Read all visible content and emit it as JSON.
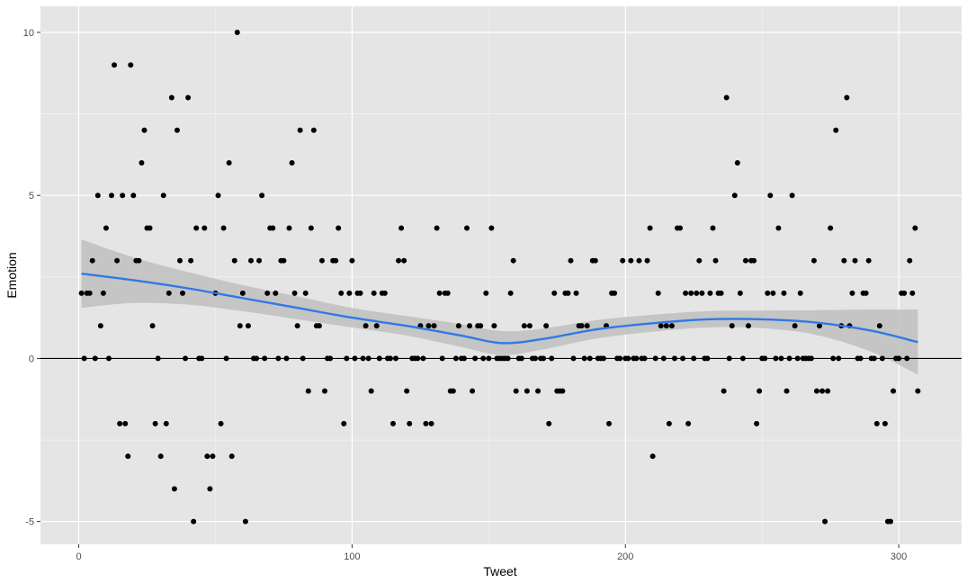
{
  "chart_data": {
    "type": "scatter",
    "title": "",
    "xlabel": "Tweet",
    "ylabel": "Emotion",
    "xlim": [
      -14,
      323
    ],
    "ylim": [
      -5.7,
      10.8
    ],
    "x_ticks": [
      0,
      100,
      200,
      300
    ],
    "y_ticks": [
      -5,
      0,
      5,
      10
    ],
    "x_tick_labels": [
      "0",
      "100",
      "200",
      "300"
    ],
    "y_tick_labels": [
      "-5",
      "0",
      "5",
      "10"
    ],
    "grid": true,
    "reference_line_y": 0,
    "points": [
      [
        1,
        2
      ],
      [
        2,
        0
      ],
      [
        3,
        2
      ],
      [
        4,
        2
      ],
      [
        5,
        3
      ],
      [
        6,
        0
      ],
      [
        7,
        5
      ],
      [
        8,
        1
      ],
      [
        9,
        2
      ],
      [
        10,
        4
      ],
      [
        11,
        0
      ],
      [
        12,
        5
      ],
      [
        13,
        9
      ],
      [
        14,
        3
      ],
      [
        15,
        -2
      ],
      [
        16,
        5
      ],
      [
        17,
        -2
      ],
      [
        18,
        -3
      ],
      [
        19,
        9
      ],
      [
        20,
        5
      ],
      [
        21,
        3
      ],
      [
        22,
        3
      ],
      [
        23,
        6
      ],
      [
        24,
        7
      ],
      [
        25,
        4
      ],
      [
        26,
        4
      ],
      [
        27,
        1
      ],
      [
        28,
        -2
      ],
      [
        29,
        0
      ],
      [
        30,
        -3
      ],
      [
        31,
        5
      ],
      [
        32,
        -2
      ],
      [
        33,
        2
      ],
      [
        34,
        8
      ],
      [
        35,
        -4
      ],
      [
        36,
        7
      ],
      [
        37,
        3
      ],
      [
        38,
        2
      ],
      [
        39,
        0
      ],
      [
        40,
        8
      ],
      [
        41,
        3
      ],
      [
        42,
        -5
      ],
      [
        43,
        4
      ],
      [
        44,
        0
      ],
      [
        45,
        0
      ],
      [
        46,
        4
      ],
      [
        47,
        -3
      ],
      [
        48,
        -4
      ],
      [
        49,
        -3
      ],
      [
        50,
        2
      ],
      [
        51,
        5
      ],
      [
        52,
        -2
      ],
      [
        53,
        4
      ],
      [
        54,
        0
      ],
      [
        55,
        6
      ],
      [
        56,
        -3
      ],
      [
        57,
        3
      ],
      [
        58,
        10
      ],
      [
        59,
        1
      ],
      [
        60,
        2
      ],
      [
        61,
        -5
      ],
      [
        62,
        1
      ],
      [
        63,
        3
      ],
      [
        64,
        0
      ],
      [
        65,
        0
      ],
      [
        66,
        3
      ],
      [
        67,
        5
      ],
      [
        68,
        0
      ],
      [
        69,
        2
      ],
      [
        70,
        4
      ],
      [
        71,
        4
      ],
      [
        72,
        2
      ],
      [
        73,
        0
      ],
      [
        74,
        3
      ],
      [
        75,
        3
      ],
      [
        76,
        0
      ],
      [
        77,
        4
      ],
      [
        78,
        6
      ],
      [
        79,
        2
      ],
      [
        80,
        1
      ],
      [
        81,
        7
      ],
      [
        82,
        0
      ],
      [
        83,
        2
      ],
      [
        84,
        -1
      ],
      [
        85,
        4
      ],
      [
        86,
        7
      ],
      [
        87,
        1
      ],
      [
        88,
        1
      ],
      [
        89,
        3
      ],
      [
        90,
        -1
      ],
      [
        91,
        0
      ],
      [
        92,
        0
      ],
      [
        93,
        3
      ],
      [
        94,
        3
      ],
      [
        95,
        4
      ],
      [
        96,
        2
      ],
      [
        97,
        -2
      ],
      [
        98,
        0
      ],
      [
        99,
        2
      ],
      [
        100,
        3
      ],
      [
        101,
        0
      ],
      [
        102,
        2
      ],
      [
        103,
        2
      ],
      [
        104,
        0
      ],
      [
        105,
        1
      ],
      [
        106,
        0
      ],
      [
        107,
        -1
      ],
      [
        108,
        2
      ],
      [
        109,
        1
      ],
      [
        110,
        0
      ],
      [
        111,
        2
      ],
      [
        112,
        2
      ],
      [
        113,
        0
      ],
      [
        114,
        0
      ],
      [
        115,
        -2
      ],
      [
        116,
        0
      ],
      [
        117,
        3
      ],
      [
        118,
        4
      ],
      [
        119,
        3
      ],
      [
        120,
        -1
      ],
      [
        121,
        -2
      ],
      [
        122,
        0
      ],
      [
        123,
        0
      ],
      [
        124,
        0
      ],
      [
        125,
        1
      ],
      [
        126,
        0
      ],
      [
        127,
        -2
      ],
      [
        128,
        1
      ],
      [
        129,
        -2
      ],
      [
        130,
        1
      ],
      [
        131,
        4
      ],
      [
        132,
        2
      ],
      [
        133,
        0
      ],
      [
        134,
        2
      ],
      [
        135,
        2
      ],
      [
        136,
        -1
      ],
      [
        137,
        -1
      ],
      [
        138,
        0
      ],
      [
        139,
        1
      ],
      [
        140,
        0
      ],
      [
        141,
        0
      ],
      [
        142,
        4
      ],
      [
        143,
        1
      ],
      [
        144,
        -1
      ],
      [
        145,
        0
      ],
      [
        146,
        1
      ],
      [
        147,
        1
      ],
      [
        148,
        0
      ],
      [
        149,
        2
      ],
      [
        150,
        0
      ],
      [
        151,
        4
      ],
      [
        152,
        1
      ],
      [
        153,
        0
      ],
      [
        154,
        0
      ],
      [
        155,
        0
      ],
      [
        156,
        0
      ],
      [
        157,
        0
      ],
      [
        158,
        2
      ],
      [
        159,
        3
      ],
      [
        160,
        -1
      ],
      [
        161,
        0
      ],
      [
        162,
        0
      ],
      [
        163,
        1
      ],
      [
        164,
        -1
      ],
      [
        165,
        1
      ],
      [
        166,
        0
      ],
      [
        167,
        0
      ],
      [
        168,
        -1
      ],
      [
        169,
        0
      ],
      [
        170,
        0
      ],
      [
        171,
        1
      ],
      [
        172,
        -2
      ],
      [
        173,
        0
      ],
      [
        174,
        2
      ],
      [
        175,
        -1
      ],
      [
        176,
        -1
      ],
      [
        177,
        -1
      ],
      [
        178,
        2
      ],
      [
        179,
        2
      ],
      [
        180,
        3
      ],
      [
        181,
        0
      ],
      [
        182,
        2
      ],
      [
        183,
        1
      ],
      [
        184,
        1
      ],
      [
        185,
        0
      ],
      [
        186,
        1
      ],
      [
        187,
        0
      ],
      [
        188,
        3
      ],
      [
        189,
        3
      ],
      [
        190,
        0
      ],
      [
        191,
        0
      ],
      [
        192,
        0
      ],
      [
        193,
        1
      ],
      [
        194,
        -2
      ],
      [
        195,
        2
      ],
      [
        196,
        2
      ],
      [
        197,
        0
      ],
      [
        198,
        0
      ],
      [
        199,
        3
      ],
      [
        200,
        0
      ],
      [
        201,
        0
      ],
      [
        202,
        3
      ],
      [
        203,
        0
      ],
      [
        204,
        0
      ],
      [
        205,
        3
      ],
      [
        206,
        0
      ],
      [
        207,
        0
      ],
      [
        208,
        3
      ],
      [
        209,
        4
      ],
      [
        210,
        -3
      ],
      [
        211,
        0
      ],
      [
        212,
        2
      ],
      [
        213,
        1
      ],
      [
        214,
        0
      ],
      [
        215,
        1
      ],
      [
        216,
        -2
      ],
      [
        217,
        1
      ],
      [
        218,
        0
      ],
      [
        219,
        4
      ],
      [
        220,
        4
      ],
      [
        221,
        0
      ],
      [
        222,
        2
      ],
      [
        223,
        -2
      ],
      [
        224,
        2
      ],
      [
        225,
        0
      ],
      [
        226,
        2
      ],
      [
        227,
        3
      ],
      [
        228,
        2
      ],
      [
        229,
        0
      ],
      [
        230,
        0
      ],
      [
        231,
        2
      ],
      [
        232,
        4
      ],
      [
        233,
        3
      ],
      [
        234,
        2
      ],
      [
        235,
        2
      ],
      [
        236,
        -1
      ],
      [
        237,
        8
      ],
      [
        238,
        0
      ],
      [
        239,
        1
      ],
      [
        240,
        5
      ],
      [
        241,
        6
      ],
      [
        242,
        2
      ],
      [
        243,
        0
      ],
      [
        244,
        3
      ],
      [
        245,
        1
      ],
      [
        246,
        3
      ],
      [
        247,
        3
      ],
      [
        248,
        -2
      ],
      [
        249,
        -1
      ],
      [
        250,
        0
      ],
      [
        251,
        0
      ],
      [
        252,
        2
      ],
      [
        253,
        5
      ],
      [
        254,
        2
      ],
      [
        255,
        0
      ],
      [
        256,
        4
      ],
      [
        257,
        0
      ],
      [
        258,
        2
      ],
      [
        259,
        -1
      ],
      [
        260,
        0
      ],
      [
        261,
        5
      ],
      [
        262,
        1
      ],
      [
        263,
        0
      ],
      [
        264,
        2
      ],
      [
        265,
        0
      ],
      [
        266,
        0
      ],
      [
        267,
        0
      ],
      [
        268,
        0
      ],
      [
        269,
        3
      ],
      [
        270,
        -1
      ],
      [
        271,
        1
      ],
      [
        272,
        -1
      ],
      [
        273,
        -5
      ],
      [
        274,
        -1
      ],
      [
        275,
        4
      ],
      [
        276,
        0
      ],
      [
        277,
        7
      ],
      [
        278,
        0
      ],
      [
        279,
        1
      ],
      [
        280,
        3
      ],
      [
        281,
        8
      ],
      [
        282,
        1
      ],
      [
        283,
        2
      ],
      [
        284,
        3
      ],
      [
        285,
        0
      ],
      [
        286,
        0
      ],
      [
        287,
        2
      ],
      [
        288,
        2
      ],
      [
        289,
        3
      ],
      [
        290,
        0
      ],
      [
        291,
        0
      ],
      [
        292,
        -2
      ],
      [
        293,
        1
      ],
      [
        294,
        0
      ],
      [
        295,
        -2
      ],
      [
        296,
        -5
      ],
      [
        297,
        -5
      ],
      [
        298,
        -1
      ],
      [
        299,
        0
      ],
      [
        300,
        0
      ],
      [
        301,
        2
      ],
      [
        302,
        2
      ],
      [
        303,
        0
      ],
      [
        304,
        3
      ],
      [
        305,
        2
      ],
      [
        306,
        4
      ],
      [
        307,
        -1
      ]
    ],
    "smooth": {
      "x": [
        1,
        20,
        40,
        60,
        80,
        100,
        120,
        140,
        155,
        170,
        190,
        210,
        230,
        250,
        270,
        290,
        307
      ],
      "y": [
        2.6,
        2.4,
        2.15,
        1.85,
        1.55,
        1.25,
        1.0,
        0.7,
        0.47,
        0.6,
        0.9,
        1.08,
        1.2,
        1.2,
        1.1,
        0.85,
        0.5
      ],
      "lower": [
        1.55,
        1.7,
        1.65,
        1.45,
        1.2,
        0.95,
        0.7,
        0.35,
        0.1,
        0.28,
        0.62,
        0.82,
        0.95,
        0.93,
        0.72,
        0.2,
        -0.5
      ],
      "upper": [
        3.65,
        3.1,
        2.65,
        2.25,
        1.9,
        1.55,
        1.3,
        1.05,
        0.84,
        0.92,
        1.18,
        1.34,
        1.45,
        1.47,
        1.48,
        1.5,
        1.5
      ]
    },
    "colors": {
      "panel": "#e5e5e5",
      "grid_major": "#ffffff",
      "point": "#000000",
      "smooth_line": "#3079e6",
      "ribbon": "#bfbfbf",
      "zero_line": "#000000"
    }
  }
}
